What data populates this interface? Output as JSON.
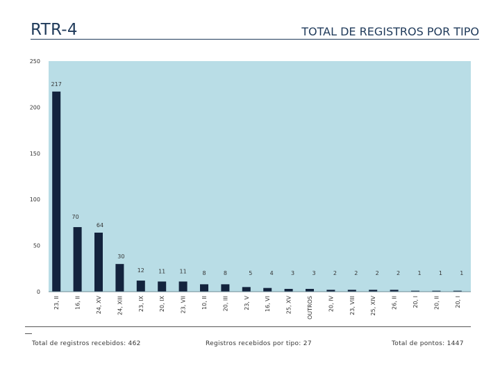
{
  "header": {
    "title": "RTR-4",
    "subtitle": "TOTAL DE REGISTROS POR TIPO"
  },
  "footer": {
    "total_registros": "Total de registros recebidos: 462",
    "registros_por_tipo": "Registros recebidos por tipo: 27",
    "total_pontos": "Total de pontos: 1447"
  },
  "colors": {
    "plot_background": "#b9dde6",
    "bar": "#13233d",
    "text": "#1f3a5a"
  },
  "chart_data": {
    "type": "bar",
    "title": "TOTAL DE REGISTROS POR TIPO",
    "xlabel": "",
    "ylabel": "",
    "ylim": [
      0,
      250
    ],
    "yticks": [
      0,
      50,
      100,
      150,
      200,
      250
    ],
    "grid": false,
    "legend": "none",
    "categories": [
      "23, II",
      "16, II",
      "24, XV",
      "24, XIII",
      "23, IX",
      "20, IX",
      "23, VII",
      "10, II",
      "20, III",
      "23, V",
      "16, VI",
      "25, XV",
      "OUTROS",
      "20, IV",
      "23, VIII",
      "25, XIV",
      "26, II",
      "20, I",
      "20, II",
      "20, I"
    ],
    "values": [
      217,
      70,
      64,
      30,
      12,
      11,
      11,
      8,
      8,
      5,
      4,
      3,
      3,
      2,
      2,
      2,
      2,
      1,
      1,
      1
    ]
  }
}
